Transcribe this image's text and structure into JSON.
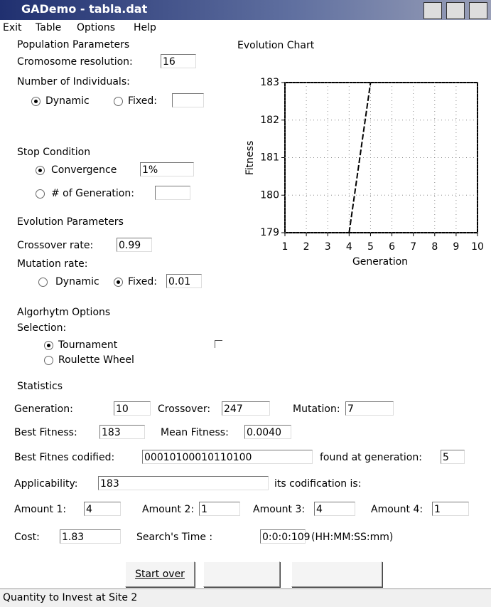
{
  "window": {
    "title": "GADemo - tabla.dat"
  },
  "menu": [
    "Exit",
    "Table",
    "Options",
    "Help"
  ],
  "population": {
    "heading": "Population Parameters",
    "resolution_label": "Cromosome resolution:",
    "resolution_value": "16",
    "individuals_label": "Number of Individuals:",
    "dynamic": "Dynamic",
    "fixed": "Fixed:"
  },
  "stop": {
    "heading": "Stop Condition",
    "convergence": "Convergence",
    "convergence_value": "1%",
    "generation": "# of Generation:"
  },
  "evolution": {
    "heading": "Evolution Parameters",
    "crossover_label": "Crossover rate:",
    "crossover_value": "0.99",
    "mutation_label": "Mutation rate:",
    "dynamic": "Dynamic",
    "fixed": "Fixed:",
    "fixed_value": "0.01"
  },
  "algorithm": {
    "heading": "Algorhytm Options",
    "selection": "Selection:",
    "tournament": "Tournament",
    "roulette": "Roulette Wheel"
  },
  "statistics": {
    "heading": "Statistics",
    "rows": [
      [
        {
          "label": "Generation:",
          "value": "10"
        },
        {
          "label": "Crossover:",
          "value": "247"
        },
        {
          "label": "Mutation:",
          "value": "7"
        }
      ],
      [
        {
          "label": "Best Fitness:",
          "value": "183"
        },
        {
          "label": "Mean Fitness:",
          "value": "0.0040"
        }
      ],
      [
        {
          "label": "Best Fitnes codified:",
          "value": "00010100010110100"
        },
        {
          "label": "found at generation:",
          "value": "5"
        }
      ],
      [
        {
          "label": "Applicability:",
          "value": "183"
        },
        {
          "label": "its codification is:"
        }
      ],
      [
        {
          "label": "Amount 1:",
          "value": "4"
        },
        {
          "label": "Amount 2:",
          "value": "1"
        },
        {
          "label": "Amount 3:",
          "value": "4"
        },
        {
          "label": "Amount 4:",
          "value": "1"
        }
      ],
      [
        {
          "label": "Cost:",
          "value": "1.83"
        },
        {
          "label": "Search's Time :",
          "value": "0:0:0:109"
        },
        {
          "label": "(HH:MM:SS:mm)"
        }
      ]
    ]
  },
  "button": "Start over",
  "status": "Quantity to Invest at Site 2",
  "chart_data": {
    "type": "line",
    "title": "Evolution Chart",
    "x_label": "Generation",
    "y_label": "Fitness",
    "x": [
      4,
      5
    ],
    "series": [
      {
        "values": [
          179,
          183
        ],
        "color": "#000000"
      }
    ],
    "xlim": [
      1,
      10
    ],
    "xticks": [
      1,
      2,
      3,
      4,
      5,
      6,
      7,
      8,
      9,
      10
    ],
    "ylim": [
      179,
      183
    ],
    "yticks": [
      179,
      180,
      181,
      182,
      183
    ],
    "grid": true
  }
}
